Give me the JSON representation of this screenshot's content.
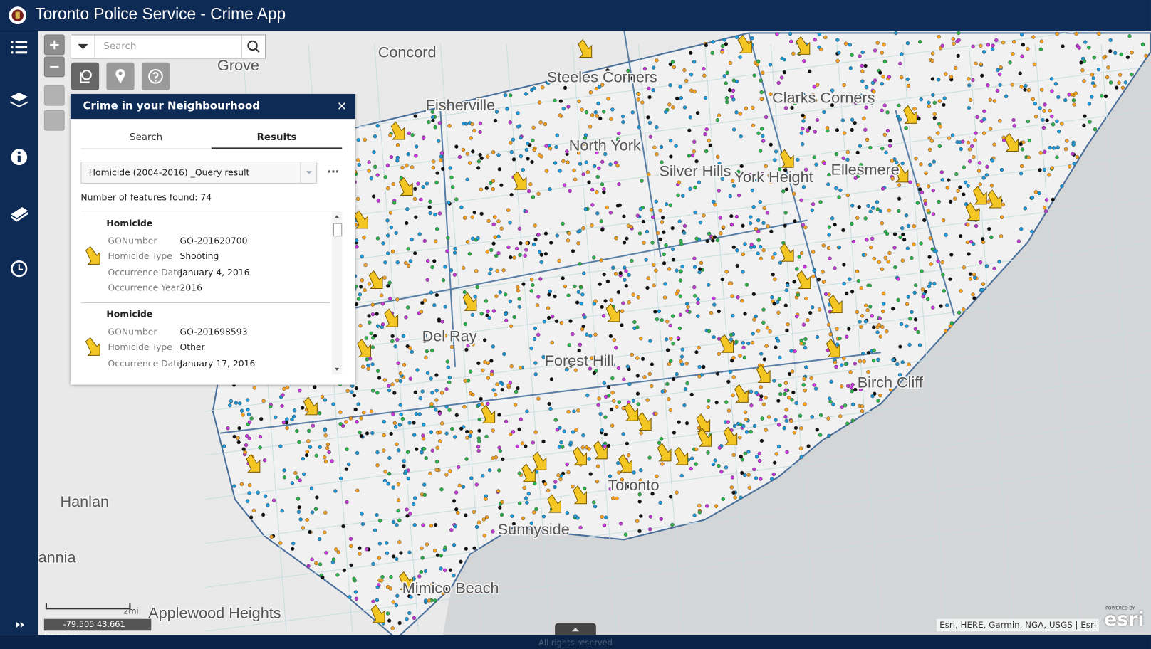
{
  "header": {
    "title": "Toronto Police Service - Crime App"
  },
  "search": {
    "placeholder": "Search"
  },
  "map": {
    "labels": [
      "Concord",
      "Grove",
      "Steeles Corners",
      "Fisherville",
      "North York",
      "Silver Hills",
      "York Height",
      "Clarks Corners",
      "Ellesmere",
      "Del Ray",
      "Forest Hill",
      "Birch Cliff",
      "Toronto",
      "Sunnyside",
      "Hanlan",
      "annia",
      "Mimico Beach",
      "Applewood Heights"
    ],
    "scale": "2mi",
    "coordinates": "-79.505 43.661 Degrees",
    "attribution": "Esri, HERE, Garmin, NGA, USGS | Esri",
    "logo_caption": "POWERED BY",
    "logo": "esri"
  },
  "panel": {
    "title": "Crime in your Neighbourhood",
    "tabs": [
      "Search",
      "Results"
    ],
    "layer": "Homicide (2004-2016) _Query result",
    "count_text": "Number of features found: 74",
    "results": [
      {
        "title": "Homicide",
        "fields": [
          [
            "GONumber",
            "GO-201620700"
          ],
          [
            "Homicide Type",
            "Shooting"
          ],
          [
            "Occurrence Date",
            "January 4, 2016"
          ],
          [
            "Occurrence Year",
            "2016"
          ]
        ]
      },
      {
        "title": "Homicide",
        "fields": [
          [
            "GONumber",
            "GO-201698593"
          ],
          [
            "Homicide Type",
            "Other"
          ],
          [
            "Occurrence Date",
            "January 17, 2016"
          ]
        ]
      }
    ]
  },
  "footer": {
    "text": "All rights reserved"
  }
}
